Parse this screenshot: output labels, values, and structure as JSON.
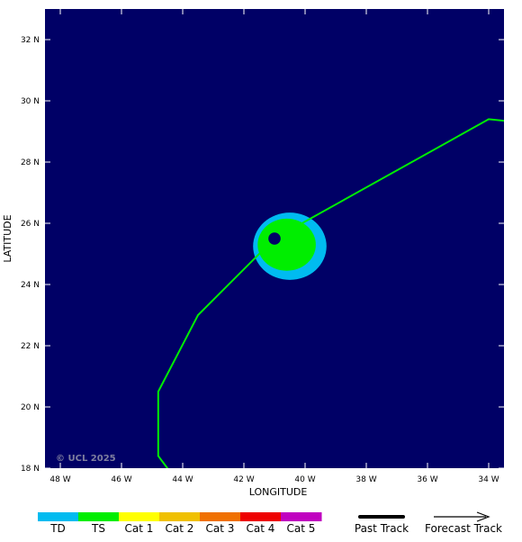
{
  "map": {
    "background_color": "#000066",
    "copyright": "© UCL 2025",
    "x_axis_label": "LONGITUDE",
    "y_axis_label": "LATITUDE",
    "lon_range": [
      -48.5,
      -33.5
    ],
    "lat_range": [
      18,
      33
    ],
    "x_ticks": [
      {
        "value": -48,
        "label": "48 W"
      },
      {
        "value": -46,
        "label": "46 W"
      },
      {
        "value": -44,
        "label": "44 W"
      },
      {
        "value": -42,
        "label": "42 W"
      },
      {
        "value": -40,
        "label": "40 W"
      },
      {
        "value": -38,
        "label": "38 W"
      },
      {
        "value": -36,
        "label": "36 W"
      },
      {
        "value": -34,
        "label": "34 W"
      }
    ],
    "y_ticks": [
      {
        "value": 18,
        "label": "18 N"
      },
      {
        "value": 20,
        "label": "20 N"
      },
      {
        "value": 22,
        "label": "22 N"
      },
      {
        "value": 24,
        "label": "24 N"
      },
      {
        "value": 26,
        "label": "26 N"
      },
      {
        "value": 28,
        "label": "28 N"
      },
      {
        "value": 30,
        "label": "30 N"
      },
      {
        "value": 32,
        "label": "32 N"
      }
    ],
    "past_track": {
      "color": "#00ee00",
      "points": [
        [
          -44.2,
          17.6
        ],
        [
          -44.8,
          18.4
        ],
        [
          -44.8,
          20.5
        ],
        [
          -43.5,
          23.0
        ],
        [
          -41.0,
          25.5
        ],
        [
          -34.0,
          29.4
        ],
        [
          -33.0,
          29.3
        ]
      ]
    },
    "storm": {
      "center": [
        -41.0,
        25.5
      ],
      "eye_color": "#000066",
      "eye_radius_deg": 0.2,
      "wind_fields": [
        {
          "category": "TD",
          "color": "#00bbf0",
          "center": [
            -40.5,
            25.25
          ],
          "rx_deg": 1.2,
          "ry_deg": 1.1
        },
        {
          "category": "TS",
          "color": "#00ee00",
          "center": [
            -40.6,
            25.3
          ],
          "rx_deg": 0.95,
          "ry_deg": 0.85
        }
      ]
    }
  },
  "legend": {
    "categories": [
      {
        "label": "TD",
        "color": "#00bbf0"
      },
      {
        "label": "TS",
        "color": "#00ee00"
      },
      {
        "label": "Cat 1",
        "color": "#ffff00"
      },
      {
        "label": "Cat 2",
        "color": "#f0c000"
      },
      {
        "label": "Cat 3",
        "color": "#f07000"
      },
      {
        "label": "Cat 4",
        "color": "#ee0000"
      },
      {
        "label": "Cat 5",
        "color": "#c000c0"
      }
    ],
    "past_track_label": "Past Track",
    "forecast_track_label": "Forecast Track"
  }
}
